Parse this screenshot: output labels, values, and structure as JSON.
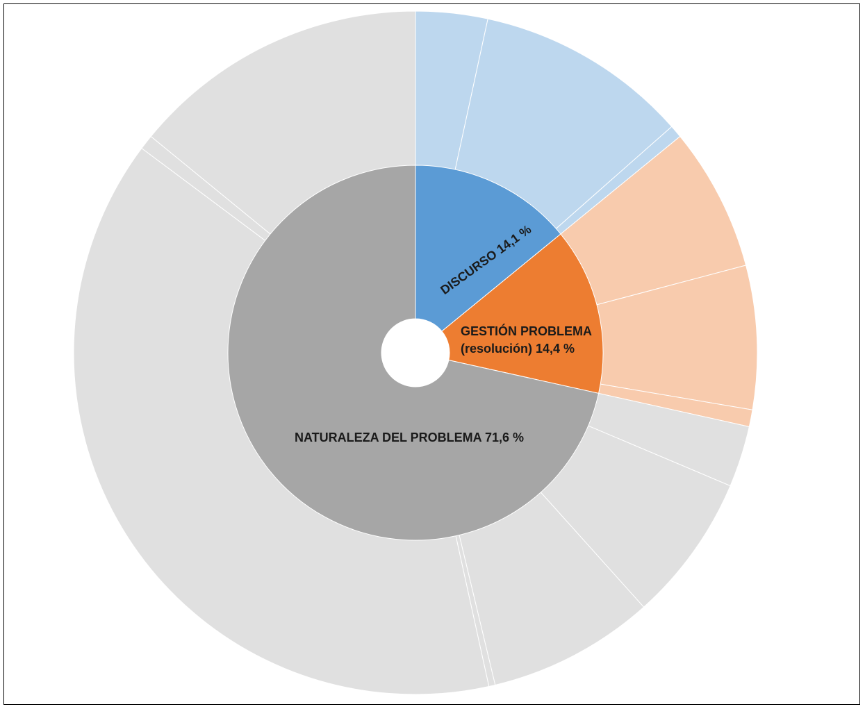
{
  "chart_data": {
    "type": "sunburst",
    "inner_ring": [
      {
        "label": "DISCURSO 14,1   %",
        "value": 14.1,
        "color": "#5b9bd5",
        "outer_color": "#bdd7ee"
      },
      {
        "label_lines": [
          "GESTIÓN PROBLEMA",
          "(resolución) 14,4 %"
        ],
        "value": 14.4,
        "color": "#ed7d31",
        "outer_color": "#f8cbad"
      },
      {
        "label": "NATURALEZA DEL PROBLEMA 71,6 %",
        "value": 71.6,
        "color": "#a6a6a6",
        "outer_color": "#e0e0e0"
      }
    ],
    "outer_ring": [
      {
        "parent": 0,
        "value": 3.4
      },
      {
        "parent": 0,
        "value": 10.1
      },
      {
        "parent": 0,
        "value": 0.6
      },
      {
        "parent": 1,
        "value": 6.8
      },
      {
        "parent": 1,
        "value": 6.8
      },
      {
        "parent": 1,
        "value": 0.8
      },
      {
        "parent": 2,
        "value": 2.9
      },
      {
        "parent": 2,
        "value": 7.0
      },
      {
        "parent": 2,
        "value": 7.9
      },
      {
        "parent": 2,
        "value": 0.3
      },
      {
        "parent": 2,
        "value": 38.7
      },
      {
        "parent": 2,
        "value": 0.7
      },
      {
        "parent": 2,
        "value": 14.1
      }
    ]
  }
}
